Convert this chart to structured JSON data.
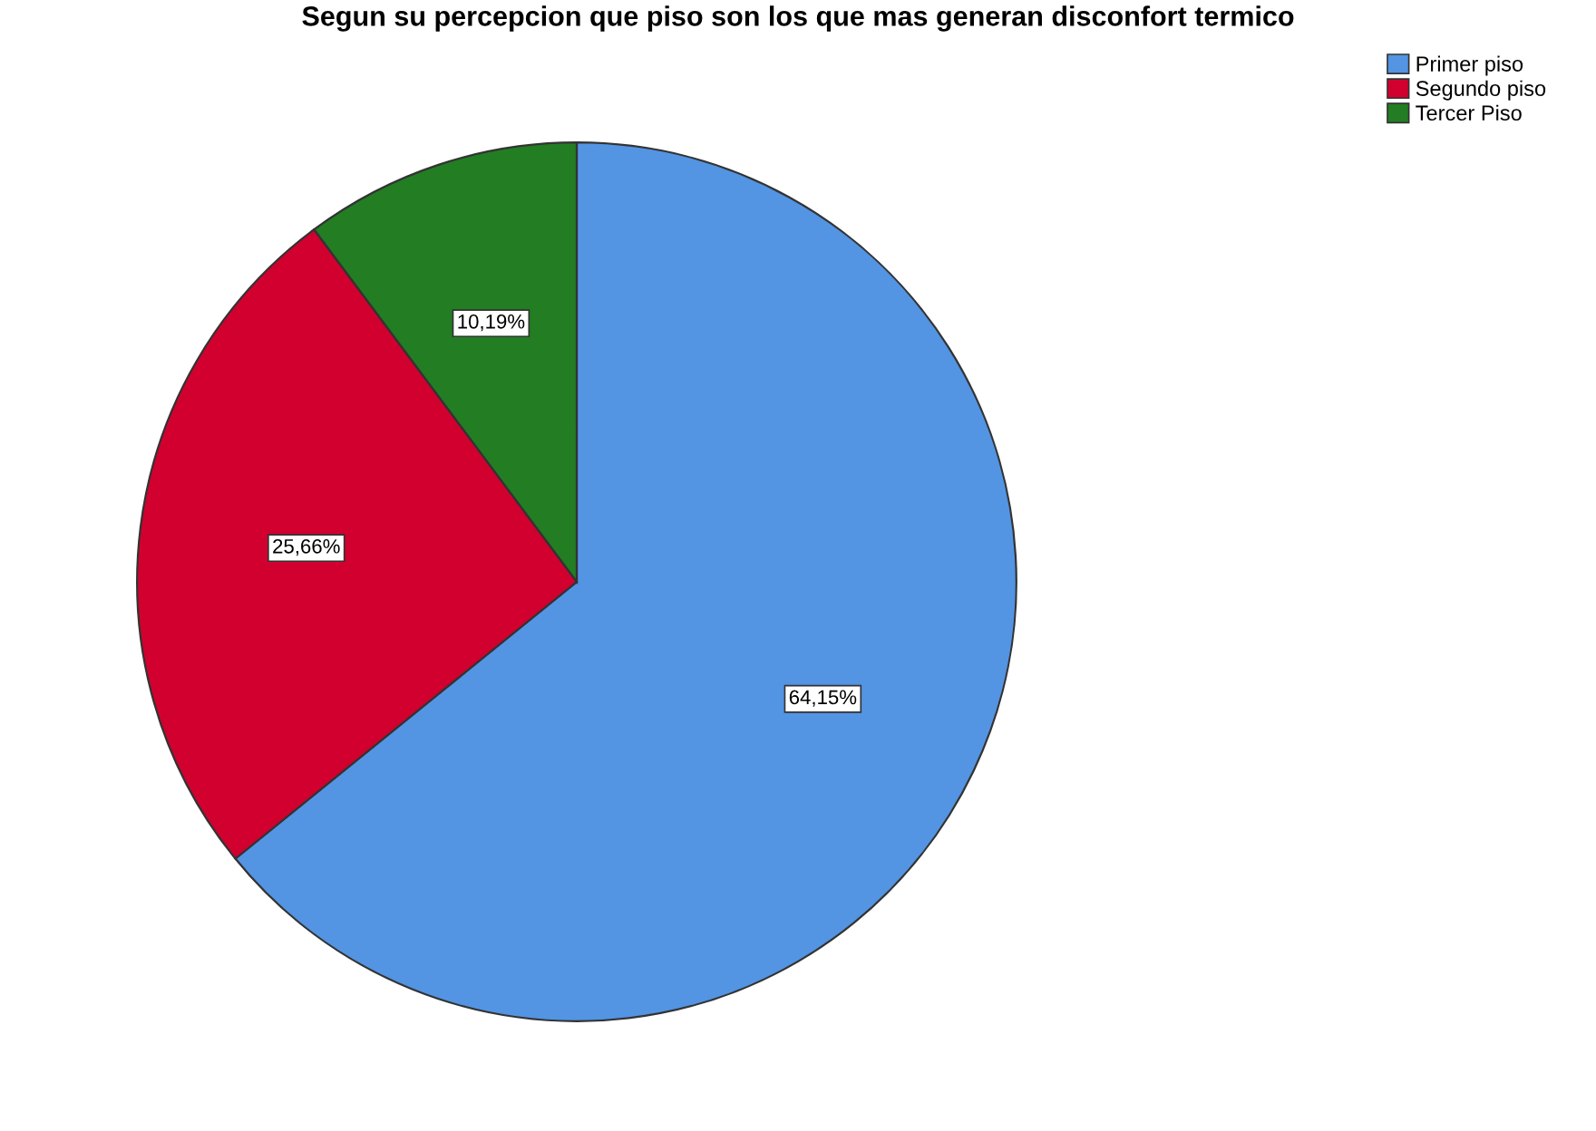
{
  "chart_data": {
    "type": "pie",
    "title": "Segun su percepcion que piso son los que mas generan disconfort termico",
    "categories": [
      "Primer piso",
      "Segundo piso",
      "Tercer Piso"
    ],
    "values": [
      64.15,
      25.66,
      10.19
    ],
    "value_labels": [
      "64,15%",
      "25,66%",
      "10,19%"
    ],
    "colors": [
      "#5394e3",
      "#d1002f",
      "#237d23"
    ],
    "legend": "top right"
  }
}
